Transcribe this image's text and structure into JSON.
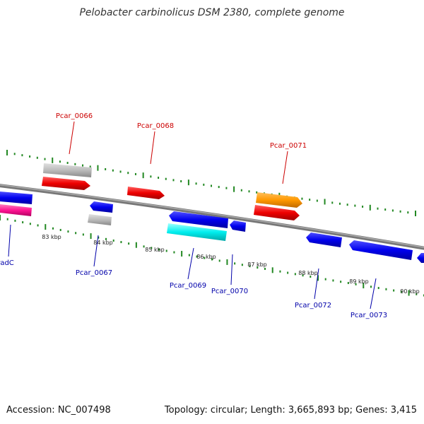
{
  "title": "Pelobacter carbinolicus DSM 2380, complete genome",
  "footer": {
    "accession": "Accession: NC_007498",
    "summary": "Topology: circular; Length: 3,665,893 bp; Genes: 3,415"
  },
  "ticks": [
    "83 kbp",
    "84 kbp",
    "85 kbp",
    "86 kbp",
    "87 kbp",
    "88 kbp",
    "89 kbp",
    "90 kbp"
  ],
  "labels": {
    "forward": [
      "Pcar_0066",
      "Pcar_0068",
      "Pcar_0071"
    ],
    "reverse": [
      "radC",
      "Pcar_0067",
      "Pcar_0069",
      "Pcar_0070",
      "Pcar_0072",
      "Pcar_0073"
    ]
  },
  "colors": {
    "forward_label": "#cc0000",
    "reverse_label": "#0000aa",
    "blue": "#0000ee",
    "red": "#ee0000",
    "gray": "#bbbbbb",
    "orange": "#ff9900",
    "cyan": "#00eeee",
    "magenta": "#ff1493",
    "dots": "#228822",
    "backbone": "#888888"
  }
}
